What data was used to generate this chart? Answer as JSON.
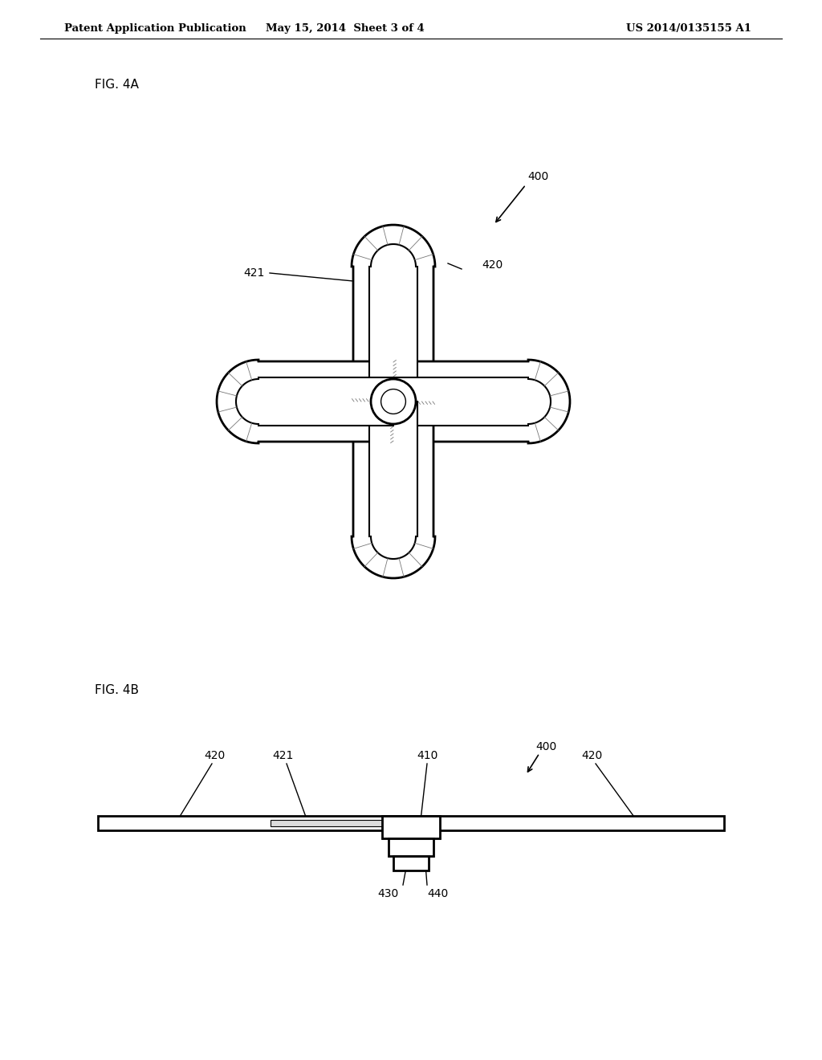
{
  "bg_color": "#ffffff",
  "line_color": "#000000",
  "header_left": "Patent Application Publication",
  "header_center": "May 15, 2014  Sheet 3 of 4",
  "header_right": "US 2014/0135155 A1",
  "fig4a_label": "FIG. 4A",
  "fig4b_label": "FIG. 4B",
  "label_400a": "400",
  "label_400b": "400",
  "label_410a": "410",
  "label_410b": "410",
  "label_420a": "420",
  "label_420b": "420",
  "label_421a": "421",
  "label_421b": "421",
  "label_430": "430",
  "label_440": "440"
}
